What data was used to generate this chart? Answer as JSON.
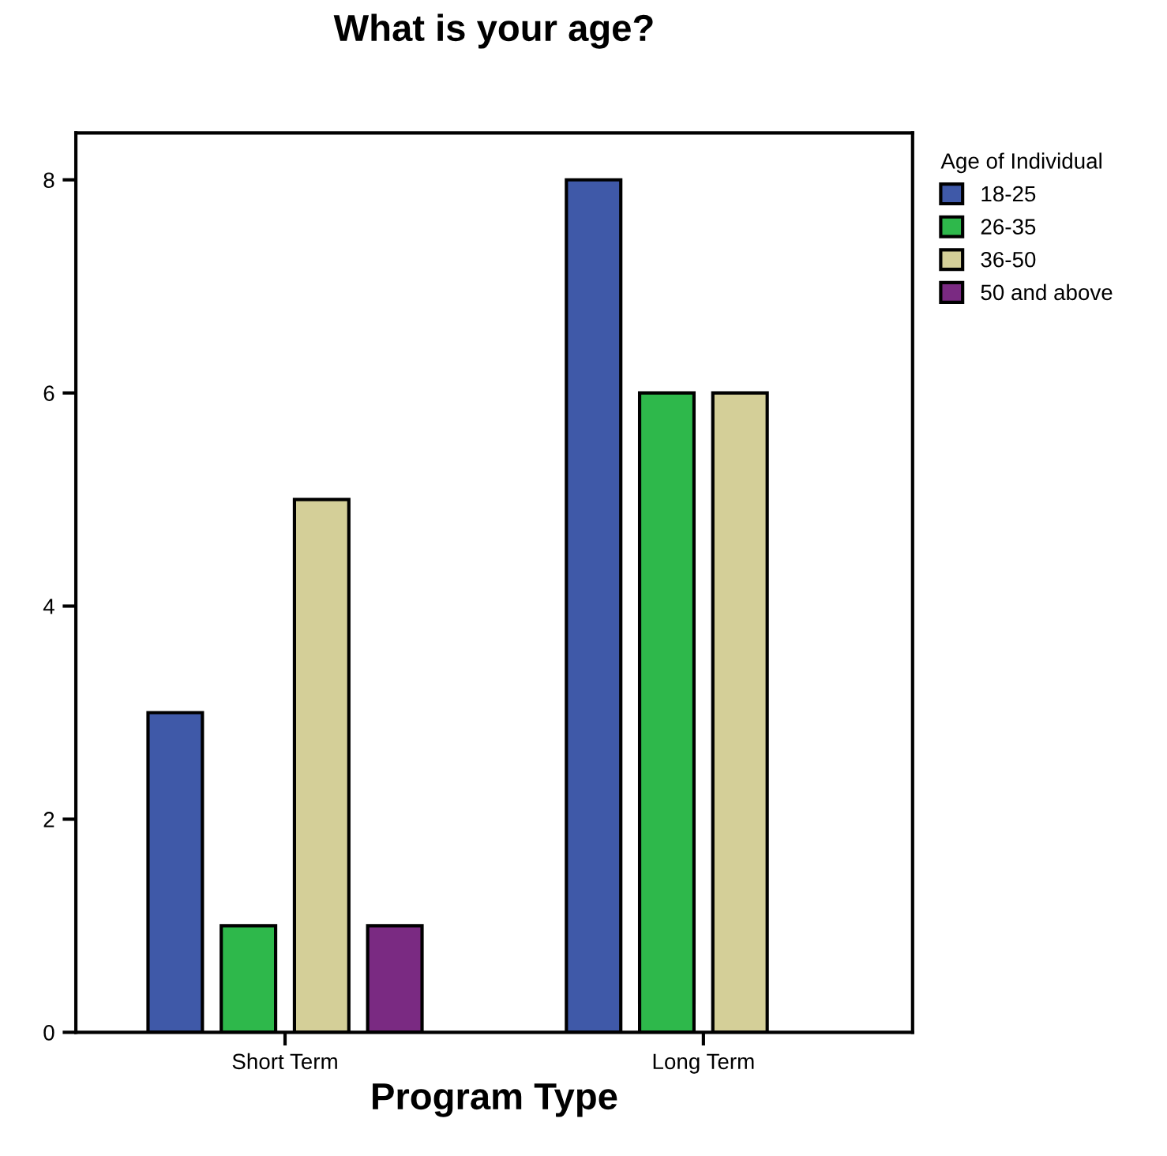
{
  "chart_data": {
    "type": "bar",
    "title": "What is your age?",
    "xlabel": "Program Type",
    "categories": [
      "Short Term",
      "Long Term"
    ],
    "series": [
      {
        "name": "18-25",
        "color": "#3f59a8",
        "values": [
          3,
          8
        ]
      },
      {
        "name": "26-35",
        "color": "#2eb84b",
        "values": [
          1,
          6
        ]
      },
      {
        "name": "36-50",
        "color": "#d4cf98",
        "values": [
          5,
          6
        ]
      },
      {
        "name": "50 and above",
        "color": "#7a2a82",
        "values": [
          1,
          null
        ]
      }
    ],
    "legend_title": "Age of Individual",
    "legend": "top right",
    "ylim": [
      0,
      8.44
    ],
    "yticks": [
      0,
      2,
      4,
      6,
      8
    ],
    "grid": false
  }
}
